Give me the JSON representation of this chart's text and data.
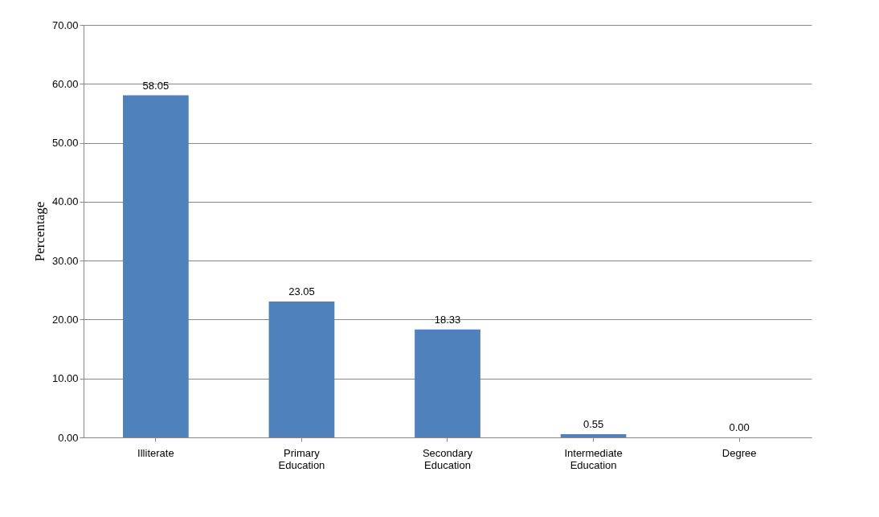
{
  "chart_data": {
    "type": "bar",
    "ylabel": "Percentage",
    "categories": [
      "Illiterate",
      "Primary Education",
      "Secondary Education",
      "Intermediate Education",
      "Degree"
    ],
    "values": [
      58.05,
      23.05,
      18.33,
      0.55,
      0.0
    ],
    "value_labels": [
      "58.05",
      "23.05",
      "18.33",
      "0.55",
      "0.00"
    ],
    "color": "#4f81bd",
    "ylim": [
      0,
      70
    ],
    "yticks": [
      {
        "value": 0,
        "label": "0.00"
      },
      {
        "value": 10,
        "label": "10.00"
      },
      {
        "value": 20,
        "label": "20.00"
      },
      {
        "value": 30,
        "label": "30.00"
      },
      {
        "value": 40,
        "label": "40.00"
      },
      {
        "value": 50,
        "label": "50.00"
      },
      {
        "value": 60,
        "label": "60.00"
      },
      {
        "value": 70,
        "label": "70.00"
      }
    ],
    "grid": "y"
  }
}
